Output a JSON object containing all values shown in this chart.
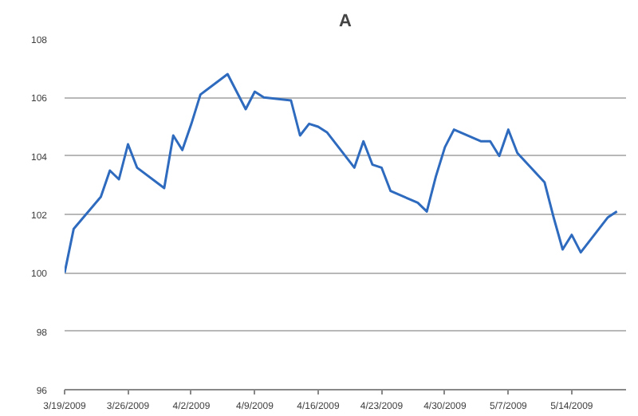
{
  "chart_data": {
    "type": "line",
    "title": "A",
    "x": [
      "2009-03-19",
      "2009-03-20",
      "2009-03-23",
      "2009-03-24",
      "2009-03-25",
      "2009-03-26",
      "2009-03-27",
      "2009-03-30",
      "2009-03-31",
      "2009-04-01",
      "2009-04-02",
      "2009-04-03",
      "2009-04-06",
      "2009-04-07",
      "2009-04-08",
      "2009-04-09",
      "2009-04-10",
      "2009-04-13",
      "2009-04-14",
      "2009-04-15",
      "2009-04-16",
      "2009-04-17",
      "2009-04-20",
      "2009-04-21",
      "2009-04-22",
      "2009-04-23",
      "2009-04-24",
      "2009-04-27",
      "2009-04-28",
      "2009-04-29",
      "2009-04-30",
      "2009-05-01",
      "2009-05-04",
      "2009-05-05",
      "2009-05-06",
      "2009-05-07",
      "2009-05-08",
      "2009-05-11",
      "2009-05-12",
      "2009-05-13",
      "2009-05-14",
      "2009-05-15",
      "2009-05-18",
      "2009-05-19"
    ],
    "series": [
      {
        "color": "#2e6bbf",
        "values": [
          100.0,
          101.5,
          102.6,
          103.5,
          103.2,
          104.4,
          103.6,
          102.9,
          104.7,
          104.2,
          105.1,
          106.1,
          106.8,
          106.2,
          105.6,
          106.2,
          106.0,
          105.9,
          104.7,
          105.1,
          105.0,
          104.8,
          103.6,
          104.5,
          103.7,
          103.6,
          102.8,
          102.4,
          102.1,
          103.3,
          104.3,
          104.9,
          104.5,
          104.5,
          104.0,
          104.9,
          104.1,
          103.1,
          101.9,
          100.8,
          101.3,
          100.7,
          101.9,
          102.1
        ]
      }
    ],
    "xlim": [
      "2009-03-19",
      "2009-05-20"
    ],
    "xticks": [
      {
        "value": "2009-03-19",
        "label": "3/19/2009"
      },
      {
        "value": "2009-03-26",
        "label": "3/26/2009"
      },
      {
        "value": "2009-04-02",
        "label": "4/2/2009"
      },
      {
        "value": "2009-04-09",
        "label": "4/9/2009"
      },
      {
        "value": "2009-04-16",
        "label": "4/16/2009"
      },
      {
        "value": "2009-04-23",
        "label": "4/23/2009"
      },
      {
        "value": "2009-04-30",
        "label": "4/30/2009"
      },
      {
        "value": "2009-05-07",
        "label": "5/7/2009"
      },
      {
        "value": "2009-05-14",
        "label": "5/14/2009"
      }
    ],
    "ylim": [
      96,
      108
    ],
    "yticks": [
      96,
      98,
      100,
      102,
      104,
      106,
      108
    ],
    "grid": "y",
    "marker": "none",
    "line_style": "solid"
  }
}
